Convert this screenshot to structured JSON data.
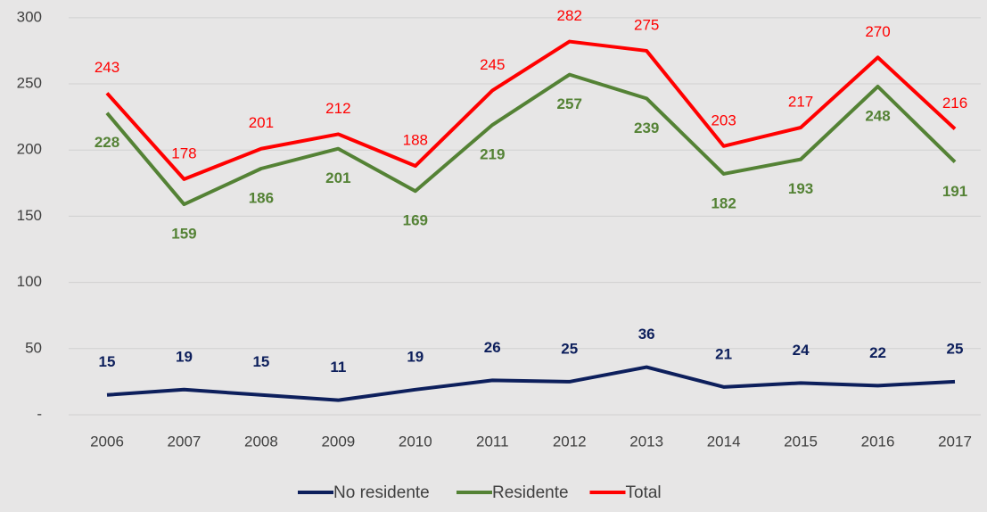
{
  "chart_data": {
    "type": "line",
    "categories": [
      "2006",
      "2007",
      "2008",
      "2009",
      "2010",
      "2011",
      "2012",
      "2013",
      "2014",
      "2015",
      "2016",
      "2017"
    ],
    "series": [
      {
        "name": "No residente",
        "color": "#0d1f5c",
        "values": [
          15,
          19,
          15,
          11,
          19,
          26,
          25,
          36,
          21,
          24,
          22,
          25
        ]
      },
      {
        "name": "Residente",
        "color": "#548235",
        "values": [
          228,
          159,
          186,
          201,
          169,
          219,
          257,
          239,
          182,
          193,
          248,
          191
        ]
      },
      {
        "name": "Total",
        "color": "#ff0000",
        "values": [
          243,
          178,
          201,
          212,
          188,
          245,
          282,
          275,
          203,
          217,
          270,
          216
        ]
      }
    ],
    "ylim": [
      0,
      310
    ],
    "yticks": [
      {
        "value": 0,
        "label": "-"
      },
      50,
      100,
      150,
      200,
      250,
      300
    ],
    "grid": true,
    "legend": "bottom"
  }
}
